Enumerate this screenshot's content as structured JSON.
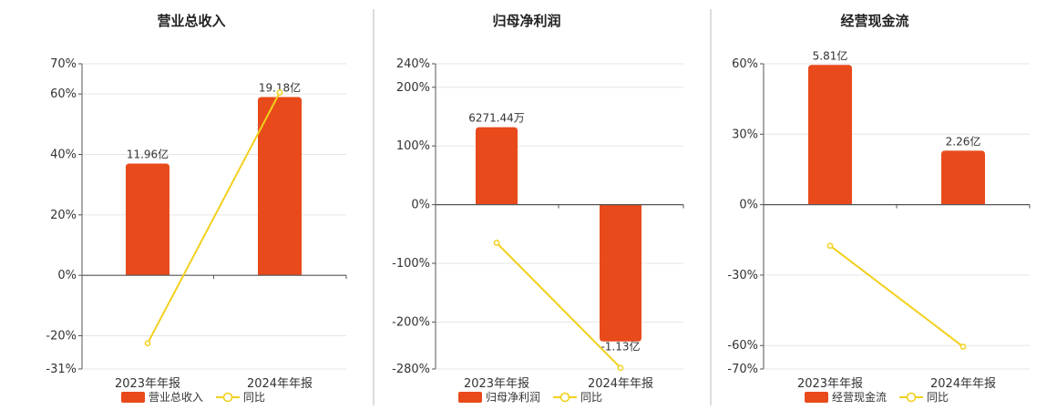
{
  "colors": {
    "bar": "#E84A1B",
    "line": "#F2D01C",
    "grid": "#E6E6E6",
    "axis": "#555555",
    "divider": "#BBBBBB"
  },
  "chart_data": [
    {
      "type": "bar",
      "title": "营业总收入",
      "categories": [
        "2023年年报",
        "2024年年报"
      ],
      "ylim": [
        -31,
        70
      ],
      "yticks": [
        70,
        60,
        40,
        20,
        0,
        -20,
        -31
      ],
      "tick_labels": [
        "70%",
        "60%",
        "40%",
        "20%",
        "0%",
        "-20%",
        "-31%"
      ],
      "grid": true,
      "legend_position": "bottom",
      "series": [
        {
          "name": "营业总收入",
          "type": "bar",
          "values": [
            37,
            59
          ],
          "labels": [
            "11.96亿",
            "19.18亿"
          ]
        },
        {
          "name": "同比",
          "type": "line",
          "values": [
            -22.5,
            60.5
          ]
        }
      ]
    },
    {
      "type": "bar",
      "title": "归母净利润",
      "categories": [
        "2023年年报",
        "2024年年报"
      ],
      "ylim": [
        -280,
        240
      ],
      "yticks": [
        240,
        200,
        100,
        0,
        -100,
        -200,
        -280
      ],
      "tick_labels": [
        "240%",
        "200%",
        "100%",
        "0%",
        "-100%",
        "-200%",
        "-280%"
      ],
      "grid": true,
      "legend_position": "bottom",
      "series": [
        {
          "name": "归母净利润",
          "type": "bar",
          "values": [
            132,
            -233
          ],
          "labels": [
            "6271.44万",
            "-1.13亿"
          ]
        },
        {
          "name": "同比",
          "type": "line",
          "values": [
            -65,
            -278
          ]
        }
      ]
    },
    {
      "type": "bar",
      "title": "经营现金流",
      "categories": [
        "2023年年报",
        "2024年年报"
      ],
      "ylim": [
        -70,
        60
      ],
      "yticks": [
        60,
        30,
        0,
        -30,
        -60,
        -70
      ],
      "tick_labels": [
        "60%",
        "30%",
        "0%",
        "-30%",
        "-60%",
        "-70%"
      ],
      "grid": true,
      "legend_position": "bottom",
      "series": [
        {
          "name": "经营现金流",
          "type": "bar",
          "values": [
            59.5,
            23
          ],
          "labels": [
            "5.81亿",
            "2.26亿"
          ]
        },
        {
          "name": "同比",
          "type": "line",
          "values": [
            -17.5,
            -60.5
          ]
        }
      ]
    }
  ]
}
